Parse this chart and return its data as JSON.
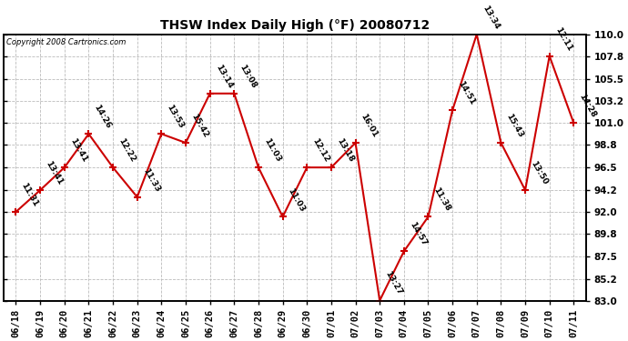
{
  "title": "THSW Index Daily High (°F) 20080712",
  "copyright": "Copyright 2008 Cartronics.com",
  "x_labels": [
    "06/18",
    "06/19",
    "06/20",
    "06/21",
    "06/22",
    "06/23",
    "06/24",
    "06/25",
    "06/26",
    "06/27",
    "06/28",
    "06/29",
    "06/30",
    "07/01",
    "07/02",
    "07/03",
    "07/04",
    "07/05",
    "07/06",
    "07/07",
    "07/08",
    "07/09",
    "07/10",
    "07/11"
  ],
  "values": [
    92.0,
    94.2,
    96.5,
    99.9,
    96.5,
    93.5,
    99.9,
    99.0,
    104.0,
    104.0,
    96.5,
    91.5,
    96.5,
    96.5,
    99.0,
    83.0,
    88.0,
    91.5,
    102.3,
    110.0,
    99.0,
    94.2,
    107.8,
    101.0
  ],
  "time_labels": [
    "11:31",
    "13:41",
    "13:41",
    "14:26",
    "12:22",
    "11:33",
    "13:53",
    "15:42",
    "13:14",
    "13:08",
    "11:03",
    "11:03",
    "12:12",
    "13:18",
    "16:01",
    "13:27",
    "14:57",
    "11:38",
    "14:51",
    "13:34",
    "15:43",
    "13:50",
    "12:11",
    "14:28"
  ],
  "ylim": [
    83.0,
    110.0
  ],
  "yticks": [
    83.0,
    85.2,
    87.5,
    89.8,
    92.0,
    94.2,
    96.5,
    98.8,
    101.0,
    103.2,
    105.5,
    107.8,
    110.0
  ],
  "line_color": "#cc0000",
  "marker_color": "#cc0000",
  "bg_color": "#ffffff",
  "plot_bg": "#ffffff",
  "grid_color": "#bbbbbb",
  "title_fontsize": 10,
  "label_fontsize": 6.5,
  "tick_fontsize": 7.5,
  "copyright_fontsize": 6.0
}
